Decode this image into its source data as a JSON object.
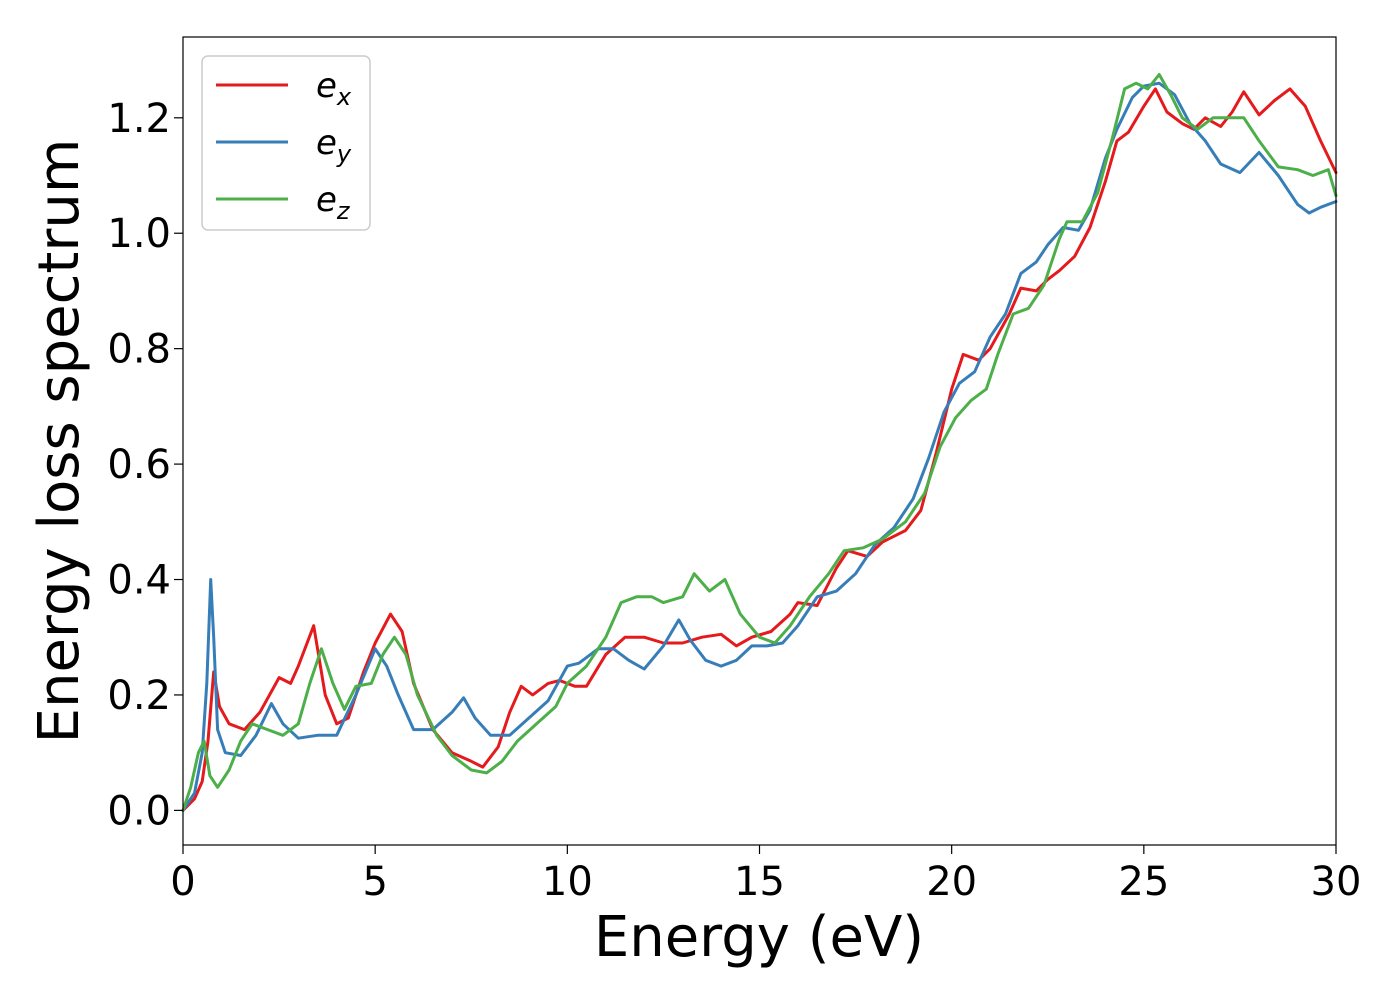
{
  "chart_data": {
    "type": "line",
    "title": "",
    "xlabel": "Energy (eV)",
    "ylabel": "Energy loss spectrum",
    "xlim": [
      0,
      30
    ],
    "ylim": [
      -0.06,
      1.34
    ],
    "xticks": [
      0,
      5,
      10,
      15,
      20,
      25,
      30
    ],
    "xtick_labels": [
      "0",
      "5",
      "10",
      "15",
      "20",
      "25",
      "30"
    ],
    "yticks": [
      0.0,
      0.2,
      0.4,
      0.6,
      0.8,
      1.0,
      1.2
    ],
    "ytick_labels": [
      "0.0",
      "0.2",
      "0.4",
      "0.6",
      "0.8",
      "1.0",
      "1.2"
    ],
    "grid": false,
    "legend_position": "top-left",
    "series": [
      {
        "name": "e_x",
        "label_main": "e",
        "label_sub": "x",
        "color": "#e41a1c",
        "points": [
          [
            0,
            0
          ],
          [
            0.3,
            0.02
          ],
          [
            0.5,
            0.05
          ],
          [
            0.65,
            0.12
          ],
          [
            0.8,
            0.24
          ],
          [
            0.95,
            0.18
          ],
          [
            1.2,
            0.15
          ],
          [
            1.6,
            0.14
          ],
          [
            2.0,
            0.17
          ],
          [
            2.5,
            0.23
          ],
          [
            2.8,
            0.22
          ],
          [
            3.0,
            0.25
          ],
          [
            3.4,
            0.32
          ],
          [
            3.7,
            0.2
          ],
          [
            4.0,
            0.15
          ],
          [
            4.3,
            0.16
          ],
          [
            4.7,
            0.24
          ],
          [
            5.0,
            0.29
          ],
          [
            5.4,
            0.34
          ],
          [
            5.7,
            0.31
          ],
          [
            6.0,
            0.22
          ],
          [
            6.5,
            0.14
          ],
          [
            7.0,
            0.1
          ],
          [
            7.5,
            0.085
          ],
          [
            7.8,
            0.075
          ],
          [
            8.2,
            0.11
          ],
          [
            8.5,
            0.17
          ],
          [
            8.8,
            0.215
          ],
          [
            9.1,
            0.2
          ],
          [
            9.5,
            0.22
          ],
          [
            9.8,
            0.225
          ],
          [
            10.2,
            0.215
          ],
          [
            10.5,
            0.215
          ],
          [
            11.0,
            0.27
          ],
          [
            11.5,
            0.3
          ],
          [
            12.0,
            0.3
          ],
          [
            12.5,
            0.29
          ],
          [
            13.0,
            0.29
          ],
          [
            13.5,
            0.3
          ],
          [
            14.0,
            0.305
          ],
          [
            14.4,
            0.285
          ],
          [
            14.8,
            0.3
          ],
          [
            15.3,
            0.31
          ],
          [
            15.8,
            0.34
          ],
          [
            16.0,
            0.36
          ],
          [
            16.5,
            0.355
          ],
          [
            17.0,
            0.42
          ],
          [
            17.3,
            0.45
          ],
          [
            17.8,
            0.44
          ],
          [
            18.2,
            0.465
          ],
          [
            18.8,
            0.485
          ],
          [
            19.2,
            0.52
          ],
          [
            19.6,
            0.62
          ],
          [
            20.0,
            0.73
          ],
          [
            20.3,
            0.79
          ],
          [
            20.7,
            0.78
          ],
          [
            21.0,
            0.8
          ],
          [
            21.5,
            0.86
          ],
          [
            21.8,
            0.905
          ],
          [
            22.2,
            0.9
          ],
          [
            22.5,
            0.92
          ],
          [
            22.8,
            0.935
          ],
          [
            23.2,
            0.96
          ],
          [
            23.6,
            1.01
          ],
          [
            24.0,
            1.09
          ],
          [
            24.3,
            1.16
          ],
          [
            24.6,
            1.175
          ],
          [
            25.0,
            1.22
          ],
          [
            25.3,
            1.25
          ],
          [
            25.6,
            1.21
          ],
          [
            26.0,
            1.19
          ],
          [
            26.3,
            1.18
          ],
          [
            26.6,
            1.2
          ],
          [
            27.0,
            1.185
          ],
          [
            27.3,
            1.21
          ],
          [
            27.6,
            1.245
          ],
          [
            28.0,
            1.205
          ],
          [
            28.4,
            1.23
          ],
          [
            28.8,
            1.25
          ],
          [
            29.2,
            1.22
          ],
          [
            29.6,
            1.16
          ],
          [
            30.0,
            1.105
          ]
        ]
      },
      {
        "name": "e_y",
        "label_main": "e",
        "label_sub": "y",
        "color": "#377eb8",
        "points": [
          [
            0,
            0
          ],
          [
            0.3,
            0.03
          ],
          [
            0.5,
            0.1
          ],
          [
            0.62,
            0.22
          ],
          [
            0.72,
            0.4
          ],
          [
            0.8,
            0.3
          ],
          [
            0.9,
            0.14
          ],
          [
            1.1,
            0.1
          ],
          [
            1.5,
            0.095
          ],
          [
            1.9,
            0.13
          ],
          [
            2.3,
            0.185
          ],
          [
            2.6,
            0.15
          ],
          [
            3.0,
            0.125
          ],
          [
            3.5,
            0.13
          ],
          [
            4.0,
            0.13
          ],
          [
            4.5,
            0.2
          ],
          [
            5.0,
            0.28
          ],
          [
            5.3,
            0.25
          ],
          [
            5.6,
            0.2
          ],
          [
            6.0,
            0.14
          ],
          [
            6.5,
            0.14
          ],
          [
            7.0,
            0.17
          ],
          [
            7.3,
            0.195
          ],
          [
            7.6,
            0.16
          ],
          [
            8.0,
            0.13
          ],
          [
            8.5,
            0.13
          ],
          [
            9.0,
            0.16
          ],
          [
            9.5,
            0.19
          ],
          [
            10.0,
            0.25
          ],
          [
            10.3,
            0.255
          ],
          [
            10.8,
            0.28
          ],
          [
            11.2,
            0.28
          ],
          [
            11.6,
            0.26
          ],
          [
            12.0,
            0.245
          ],
          [
            12.5,
            0.285
          ],
          [
            12.9,
            0.33
          ],
          [
            13.2,
            0.295
          ],
          [
            13.6,
            0.26
          ],
          [
            14.0,
            0.25
          ],
          [
            14.4,
            0.26
          ],
          [
            14.8,
            0.285
          ],
          [
            15.2,
            0.285
          ],
          [
            15.6,
            0.29
          ],
          [
            16.0,
            0.32
          ],
          [
            16.5,
            0.37
          ],
          [
            17.0,
            0.38
          ],
          [
            17.5,
            0.41
          ],
          [
            18.0,
            0.46
          ],
          [
            18.5,
            0.49
          ],
          [
            19.0,
            0.54
          ],
          [
            19.4,
            0.61
          ],
          [
            19.8,
            0.69
          ],
          [
            20.2,
            0.74
          ],
          [
            20.6,
            0.76
          ],
          [
            21.0,
            0.82
          ],
          [
            21.4,
            0.86
          ],
          [
            21.8,
            0.93
          ],
          [
            22.2,
            0.95
          ],
          [
            22.5,
            0.98
          ],
          [
            22.9,
            1.01
          ],
          [
            23.3,
            1.005
          ],
          [
            23.6,
            1.04
          ],
          [
            24.0,
            1.13
          ],
          [
            24.3,
            1.18
          ],
          [
            24.7,
            1.235
          ],
          [
            25.0,
            1.255
          ],
          [
            25.4,
            1.26
          ],
          [
            25.8,
            1.24
          ],
          [
            26.2,
            1.19
          ],
          [
            26.6,
            1.16
          ],
          [
            27.0,
            1.12
          ],
          [
            27.5,
            1.105
          ],
          [
            28.0,
            1.14
          ],
          [
            28.5,
            1.1
          ],
          [
            29.0,
            1.05
          ],
          [
            29.3,
            1.035
          ],
          [
            29.6,
            1.045
          ],
          [
            30.0,
            1.055
          ]
        ]
      },
      {
        "name": "e_z",
        "label_main": "e",
        "label_sub": "z",
        "color": "#4daf4a",
        "points": [
          [
            0,
            0
          ],
          [
            0.2,
            0.04
          ],
          [
            0.4,
            0.1
          ],
          [
            0.55,
            0.12
          ],
          [
            0.7,
            0.06
          ],
          [
            0.9,
            0.04
          ],
          [
            1.2,
            0.07
          ],
          [
            1.5,
            0.12
          ],
          [
            1.8,
            0.15
          ],
          [
            2.2,
            0.14
          ],
          [
            2.6,
            0.13
          ],
          [
            3.0,
            0.15
          ],
          [
            3.3,
            0.22
          ],
          [
            3.6,
            0.28
          ],
          [
            3.9,
            0.22
          ],
          [
            4.2,
            0.175
          ],
          [
            4.5,
            0.215
          ],
          [
            4.9,
            0.22
          ],
          [
            5.2,
            0.27
          ],
          [
            5.5,
            0.3
          ],
          [
            5.8,
            0.27
          ],
          [
            6.1,
            0.2
          ],
          [
            6.6,
            0.13
          ],
          [
            7.0,
            0.095
          ],
          [
            7.5,
            0.07
          ],
          [
            7.9,
            0.065
          ],
          [
            8.3,
            0.085
          ],
          [
            8.7,
            0.12
          ],
          [
            9.2,
            0.15
          ],
          [
            9.7,
            0.18
          ],
          [
            10.0,
            0.22
          ],
          [
            10.5,
            0.25
          ],
          [
            11.0,
            0.3
          ],
          [
            11.4,
            0.36
          ],
          [
            11.8,
            0.37
          ],
          [
            12.2,
            0.37
          ],
          [
            12.5,
            0.36
          ],
          [
            13.0,
            0.37
          ],
          [
            13.3,
            0.41
          ],
          [
            13.7,
            0.38
          ],
          [
            14.1,
            0.4
          ],
          [
            14.5,
            0.34
          ],
          [
            15.0,
            0.3
          ],
          [
            15.4,
            0.29
          ],
          [
            15.8,
            0.32
          ],
          [
            16.3,
            0.37
          ],
          [
            16.8,
            0.41
          ],
          [
            17.2,
            0.45
          ],
          [
            17.7,
            0.455
          ],
          [
            18.2,
            0.47
          ],
          [
            18.8,
            0.5
          ],
          [
            19.3,
            0.55
          ],
          [
            19.7,
            0.63
          ],
          [
            20.1,
            0.68
          ],
          [
            20.5,
            0.71
          ],
          [
            20.9,
            0.73
          ],
          [
            21.2,
            0.79
          ],
          [
            21.6,
            0.86
          ],
          [
            22.0,
            0.87
          ],
          [
            22.4,
            0.91
          ],
          [
            22.8,
            0.99
          ],
          [
            23.0,
            1.02
          ],
          [
            23.4,
            1.02
          ],
          [
            23.8,
            1.07
          ],
          [
            24.2,
            1.17
          ],
          [
            24.5,
            1.25
          ],
          [
            24.8,
            1.26
          ],
          [
            25.1,
            1.25
          ],
          [
            25.4,
            1.275
          ],
          [
            25.7,
            1.24
          ],
          [
            26.0,
            1.2
          ],
          [
            26.4,
            1.18
          ],
          [
            26.8,
            1.2
          ],
          [
            27.2,
            1.2
          ],
          [
            27.6,
            1.2
          ],
          [
            28.0,
            1.16
          ],
          [
            28.5,
            1.115
          ],
          [
            29.0,
            1.11
          ],
          [
            29.4,
            1.1
          ],
          [
            29.8,
            1.11
          ],
          [
            30.0,
            1.065
          ]
        ]
      }
    ]
  }
}
